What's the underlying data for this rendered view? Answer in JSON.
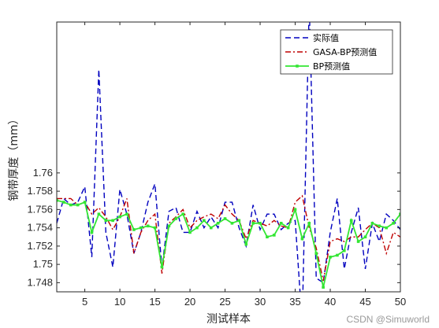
{
  "chart_data": {
    "type": "line",
    "xlabel": "测试样本",
    "ylabel": "钢带厚度（mm）",
    "xlim": [
      1,
      50
    ],
    "ylim": [
      1.747,
      1.7765
    ],
    "xticks": [
      5,
      10,
      15,
      20,
      25,
      30,
      35,
      40,
      45,
      50
    ],
    "yticks": [
      1.748,
      1.75,
      1.752,
      1.754,
      1.756,
      1.758,
      1.76
    ],
    "ytick_labels": [
      "1.748",
      "1.75",
      "1.752",
      "1.754",
      "1.756",
      "1.758",
      "1.76"
    ],
    "grid": false,
    "legend_position": "top-right",
    "x": [
      1,
      2,
      3,
      4,
      5,
      6,
      7,
      8,
      9,
      10,
      11,
      12,
      13,
      14,
      15,
      16,
      17,
      18,
      19,
      20,
      21,
      22,
      23,
      24,
      25,
      26,
      27,
      28,
      29,
      30,
      31,
      32,
      33,
      34,
      35,
      36,
      37,
      38,
      39,
      40,
      41,
      42,
      43,
      44,
      45,
      46,
      47,
      48,
      49,
      50
    ],
    "series": [
      {
        "name": "实际值",
        "color": "#0000bf",
        "dash": "dashed",
        "values": [
          1.7545,
          1.7572,
          1.7565,
          1.7568,
          1.7585,
          1.7508,
          1.7713,
          1.7535,
          1.7497,
          1.7582,
          1.7555,
          1.7512,
          1.7535,
          1.7568,
          1.7588,
          1.7496,
          1.7558,
          1.7562,
          1.7535,
          1.7535,
          1.7558,
          1.754,
          1.7552,
          1.754,
          1.7568,
          1.7568,
          1.754,
          1.752,
          1.7565,
          1.7538,
          1.7555,
          1.7555,
          1.7538,
          1.7545,
          1.7548,
          1.7435,
          1.7785,
          1.7485,
          1.748,
          1.7535,
          1.7572,
          1.7495,
          1.7535,
          1.7562,
          1.7495,
          1.7545,
          1.7525,
          1.7555,
          1.7548,
          1.7538
        ]
      },
      {
        "name": "GASA-BP预测值",
        "color": "#bf0000",
        "dash": "dashdot",
        "values": [
          1.7572,
          1.7572,
          1.7572,
          1.7565,
          1.7568,
          1.7555,
          1.7562,
          1.7552,
          1.7538,
          1.7552,
          1.7572,
          1.7512,
          1.7535,
          1.7548,
          1.7555,
          1.749,
          1.7545,
          1.7552,
          1.756,
          1.754,
          1.7548,
          1.7552,
          1.7555,
          1.755,
          1.7565,
          1.7555,
          1.7548,
          1.7528,
          1.7548,
          1.7545,
          1.7542,
          1.7548,
          1.7542,
          1.754,
          1.7568,
          1.7575,
          1.754,
          1.7518,
          1.7482,
          1.7525,
          1.7528,
          1.7525,
          1.753,
          1.753,
          1.7538,
          1.7545,
          1.754,
          1.7512,
          1.7535,
          1.753
        ]
      },
      {
        "name": "BP预测值",
        "color": "#33e633",
        "dash": "solid",
        "values": [
          1.757,
          1.7568,
          1.7565,
          1.7565,
          1.7568,
          1.7535,
          1.7555,
          1.7548,
          1.7548,
          1.7552,
          1.7555,
          1.7538,
          1.754,
          1.7542,
          1.754,
          1.7497,
          1.7542,
          1.755,
          1.7555,
          1.7535,
          1.754,
          1.7548,
          1.754,
          1.7545,
          1.755,
          1.7545,
          1.7548,
          1.7522,
          1.7545,
          1.7545,
          1.753,
          1.7532,
          1.7545,
          1.754,
          1.756,
          1.7528,
          1.7545,
          1.7512,
          1.7475,
          1.7508,
          1.751,
          1.7515,
          1.7548,
          1.7525,
          1.753,
          1.7545,
          1.7542,
          1.754,
          1.7545,
          1.7555
        ]
      }
    ]
  },
  "watermark": "CSDN @Simuworld"
}
